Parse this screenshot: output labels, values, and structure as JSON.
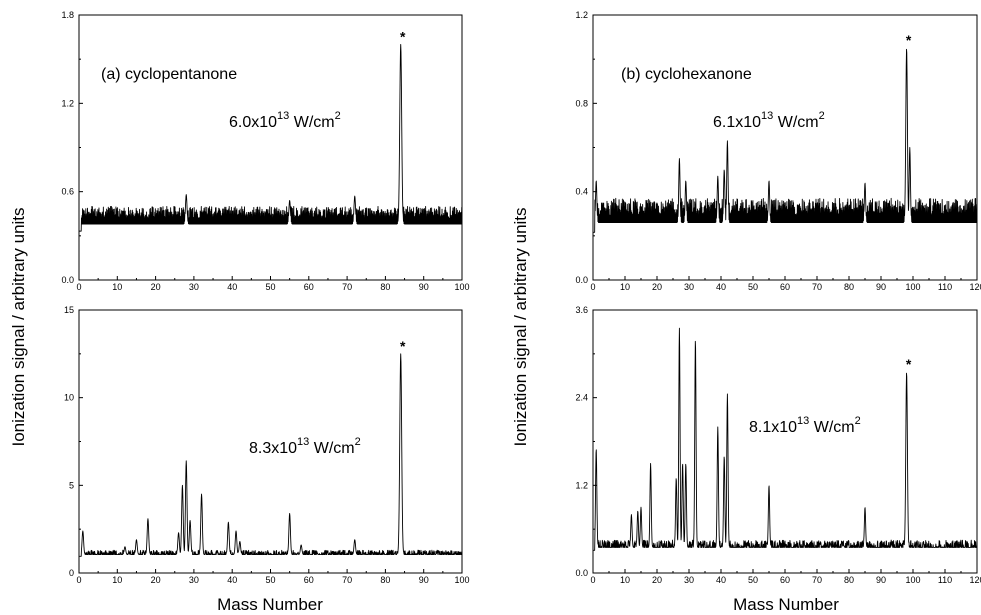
{
  "xlabel": "Mass Number",
  "ylabel": "Ionization signal / arbitrary  units",
  "chart_data": [
    {
      "type": "line",
      "panel": "left-top",
      "title": "(a) cyclopentanone",
      "intensity_main": "6.0x10",
      "intensity_exp": "13",
      "intensity_unit": " W/cm",
      "intensity_unit_exp": "2",
      "marker": "*",
      "marker_x": 84,
      "xlim": [
        0,
        100
      ],
      "ylim": [
        0,
        1.8
      ],
      "xticks": [
        0,
        10,
        20,
        30,
        40,
        50,
        60,
        70,
        80,
        90,
        100
      ],
      "yticks": [
        0.0,
        0.6,
        1.2,
        1.8
      ],
      "ytick_labels": [
        "0.0",
        "0.6",
        "1.2",
        "1.8"
      ],
      "baseline": {
        "low": 0.26,
        "high": 0.5
      },
      "peaks": [
        [
          28,
          0.58
        ],
        [
          55,
          0.54
        ],
        [
          72,
          0.57
        ],
        [
          84,
          1.6
        ]
      ]
    },
    {
      "type": "line",
      "panel": "left-bottom",
      "intensity_main": "8.3x10",
      "intensity_exp": "13",
      "intensity_unit": " W/cm",
      "intensity_unit_exp": "2",
      "marker": "*",
      "marker_x": 84,
      "xlim": [
        0,
        100
      ],
      "ylim": [
        0,
        15
      ],
      "xticks": [
        0,
        10,
        20,
        30,
        40,
        50,
        60,
        70,
        80,
        90,
        100
      ],
      "yticks": [
        0,
        5,
        10,
        15
      ],
      "ytick_labels": [
        "0",
        "5",
        "10",
        "15"
      ],
      "baseline": {
        "low": 0.8,
        "high": 1.3
      },
      "peaks": [
        [
          1,
          2.4
        ],
        [
          12,
          1.5
        ],
        [
          15,
          1.9
        ],
        [
          18,
          3.1
        ],
        [
          26,
          2.3
        ],
        [
          27,
          5.0
        ],
        [
          28,
          6.4
        ],
        [
          29,
          3.0
        ],
        [
          32,
          4.5
        ],
        [
          39,
          2.9
        ],
        [
          41,
          2.4
        ],
        [
          42,
          1.8
        ],
        [
          55,
          3.4
        ],
        [
          58,
          1.6
        ],
        [
          72,
          1.9
        ],
        [
          84,
          12.5
        ]
      ]
    },
    {
      "type": "line",
      "panel": "right-top",
      "title": "(b) cyclohexanone",
      "intensity_main": "6.1x10",
      "intensity_exp": "13",
      "intensity_unit": " W/cm",
      "intensity_unit_exp": "2",
      "marker": "*",
      "marker_x": 98,
      "xlim": [
        0,
        120
      ],
      "ylim": [
        0,
        1.2
      ],
      "xticks": [
        0,
        10,
        20,
        30,
        40,
        50,
        60,
        70,
        80,
        90,
        100,
        110,
        120
      ],
      "yticks": [
        0.0,
        0.4,
        0.8,
        1.2
      ],
      "ytick_labels": [
        "0.0",
        "0.4",
        "0.8",
        "1.2"
      ],
      "baseline": {
        "low": 0.15,
        "high": 0.37
      },
      "peaks": [
        [
          1,
          0.45
        ],
        [
          27,
          0.55
        ],
        [
          29,
          0.45
        ],
        [
          39,
          0.47
        ],
        [
          41,
          0.5
        ],
        [
          42,
          0.63
        ],
        [
          55,
          0.45
        ],
        [
          85,
          0.44
        ],
        [
          98,
          1.05
        ],
        [
          99,
          0.6
        ]
      ]
    },
    {
      "type": "line",
      "panel": "right-bottom",
      "intensity_main": "8.1x10",
      "intensity_exp": "13",
      "intensity_unit": " W/cm",
      "intensity_unit_exp": "2",
      "marker": "*",
      "marker_x": 98,
      "xlim": [
        0,
        120
      ],
      "ylim": [
        0,
        3.6
      ],
      "xticks": [
        0,
        10,
        20,
        30,
        40,
        50,
        60,
        70,
        80,
        90,
        100,
        110,
        120
      ],
      "yticks": [
        0.0,
        1.2,
        2.4,
        3.6
      ],
      "ytick_labels": [
        "0.0",
        "1.2",
        "2.4",
        "3.6"
      ],
      "baseline": {
        "low": 0.25,
        "high": 0.45
      },
      "peaks": [
        [
          1,
          1.7
        ],
        [
          12,
          0.8
        ],
        [
          14,
          0.85
        ],
        [
          15,
          0.9
        ],
        [
          18,
          1.5
        ],
        [
          26,
          1.3
        ],
        [
          27,
          3.35
        ],
        [
          28,
          1.5
        ],
        [
          29,
          1.5
        ],
        [
          32,
          3.2
        ],
        [
          39,
          2.0
        ],
        [
          41,
          1.6
        ],
        [
          42,
          2.45
        ],
        [
          55,
          1.2
        ],
        [
          85,
          0.9
        ],
        [
          98,
          2.75
        ]
      ]
    }
  ]
}
